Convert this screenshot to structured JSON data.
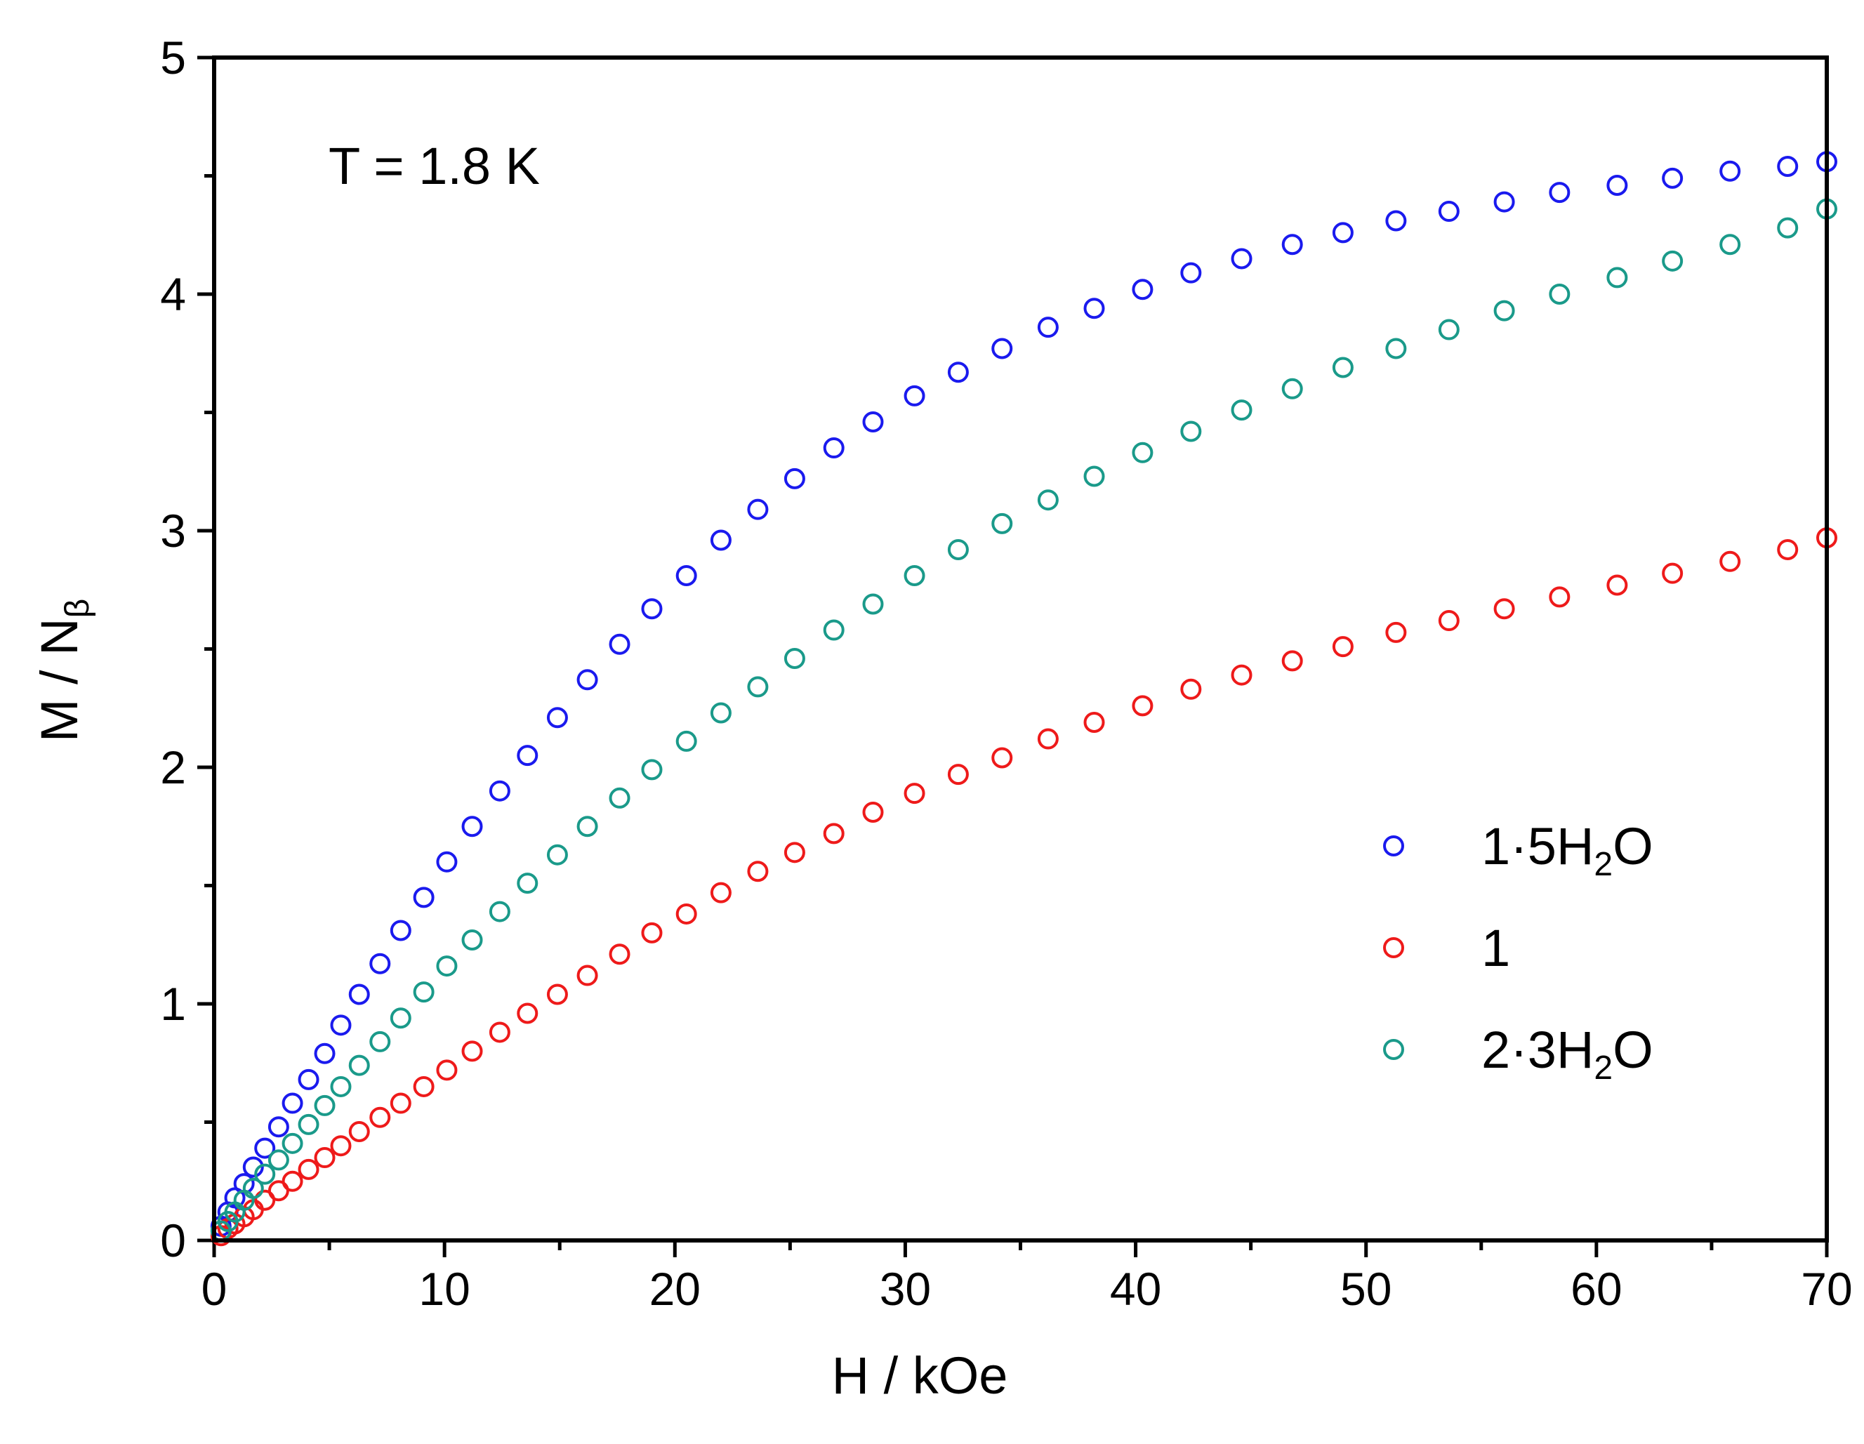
{
  "chart_data": {
    "type": "scatter",
    "xlabel": "H / kOe",
    "ylabel": {
      "main": "M / N",
      "subscript": "β"
    },
    "xlim": [
      0,
      70
    ],
    "ylim": [
      0,
      5
    ],
    "xticks": [
      0,
      10,
      20,
      30,
      40,
      50,
      60,
      70
    ],
    "xtick_labels": [
      "0",
      "10",
      "20",
      "30",
      "40",
      "50",
      "60",
      "70"
    ],
    "yticks": [
      0,
      1,
      2,
      3,
      4,
      5
    ],
    "ytick_labels": [
      "0",
      "1",
      "2",
      "3",
      "4",
      "5"
    ],
    "annotation": "T = 1.8 K",
    "legend_position": "lower-right",
    "marker": "open-circle",
    "series": [
      {
        "name": "1·5H2O",
        "legend": {
          "pre": "1·5H",
          "sub": "2",
          "post": "O"
        },
        "color": "#1a1aee",
        "x": [
          0.3,
          0.6,
          0.9,
          1.3,
          1.7,
          2.2,
          2.8,
          3.4,
          4.1,
          4.8,
          5.5,
          6.3,
          7.2,
          8.1,
          9.1,
          10.1,
          11.2,
          12.4,
          13.6,
          14.9,
          16.2,
          17.6,
          19.0,
          20.5,
          22.0,
          23.6,
          25.2,
          26.9,
          28.6,
          30.4,
          32.3,
          34.2,
          36.2,
          38.2,
          40.3,
          42.4,
          44.6,
          46.8,
          49.0,
          51.3,
          53.6,
          56.0,
          58.4,
          60.9,
          63.3,
          65.8,
          68.3,
          70.0
        ],
        "y": [
          0.06,
          0.12,
          0.18,
          0.24,
          0.31,
          0.39,
          0.48,
          0.58,
          0.68,
          0.79,
          0.91,
          1.04,
          1.17,
          1.31,
          1.45,
          1.6,
          1.75,
          1.9,
          2.05,
          2.21,
          2.37,
          2.52,
          2.67,
          2.81,
          2.96,
          3.09,
          3.22,
          3.35,
          3.46,
          3.57,
          3.67,
          3.77,
          3.86,
          3.94,
          4.02,
          4.09,
          4.15,
          4.21,
          4.26,
          4.31,
          4.35,
          4.39,
          4.43,
          4.46,
          4.49,
          4.52,
          4.54,
          4.56
        ]
      },
      {
        "name": "1",
        "legend": {
          "pre": "1",
          "sub": "",
          "post": ""
        },
        "color": "#ee1a1a",
        "x": [
          0.3,
          0.6,
          0.9,
          1.3,
          1.7,
          2.2,
          2.8,
          3.4,
          4.1,
          4.8,
          5.5,
          6.3,
          7.2,
          8.1,
          9.1,
          10.1,
          11.2,
          12.4,
          13.6,
          14.9,
          16.2,
          17.6,
          19.0,
          20.5,
          22.0,
          23.6,
          25.2,
          26.9,
          28.6,
          30.4,
          32.3,
          34.2,
          36.2,
          38.2,
          40.3,
          42.4,
          44.6,
          46.8,
          49.0,
          51.3,
          53.6,
          56.0,
          58.4,
          60.9,
          63.3,
          65.8,
          68.3,
          70.0
        ],
        "y": [
          0.02,
          0.05,
          0.07,
          0.1,
          0.13,
          0.17,
          0.21,
          0.25,
          0.3,
          0.35,
          0.4,
          0.46,
          0.52,
          0.58,
          0.65,
          0.72,
          0.8,
          0.88,
          0.96,
          1.04,
          1.12,
          1.21,
          1.3,
          1.38,
          1.47,
          1.56,
          1.64,
          1.72,
          1.81,
          1.89,
          1.97,
          2.04,
          2.12,
          2.19,
          2.26,
          2.33,
          2.39,
          2.45,
          2.51,
          2.57,
          2.62,
          2.67,
          2.72,
          2.77,
          2.82,
          2.87,
          2.92,
          2.97
        ]
      },
      {
        "name": "2·3H2O",
        "legend": {
          "pre": "2·3H",
          "sub": "2",
          "post": "O"
        },
        "color": "#1a9a8a",
        "x": [
          0.3,
          0.6,
          0.9,
          1.3,
          1.7,
          2.2,
          2.8,
          3.4,
          4.1,
          4.8,
          5.5,
          6.3,
          7.2,
          8.1,
          9.1,
          10.1,
          11.2,
          12.4,
          13.6,
          14.9,
          16.2,
          17.6,
          19.0,
          20.5,
          22.0,
          23.6,
          25.2,
          26.9,
          28.6,
          30.4,
          32.3,
          34.2,
          36.2,
          38.2,
          40.3,
          42.4,
          44.6,
          46.8,
          49.0,
          51.3,
          53.6,
          56.0,
          58.4,
          60.9,
          63.3,
          65.8,
          68.3,
          70.0
        ],
        "y": [
          0.04,
          0.08,
          0.12,
          0.17,
          0.22,
          0.28,
          0.34,
          0.41,
          0.49,
          0.57,
          0.65,
          0.74,
          0.84,
          0.94,
          1.05,
          1.16,
          1.27,
          1.39,
          1.51,
          1.63,
          1.75,
          1.87,
          1.99,
          2.11,
          2.23,
          2.34,
          2.46,
          2.58,
          2.69,
          2.81,
          2.92,
          3.03,
          3.13,
          3.23,
          3.33,
          3.42,
          3.51,
          3.6,
          3.69,
          3.77,
          3.85,
          3.93,
          4.0,
          4.07,
          4.14,
          4.21,
          4.28,
          4.36
        ]
      }
    ]
  }
}
